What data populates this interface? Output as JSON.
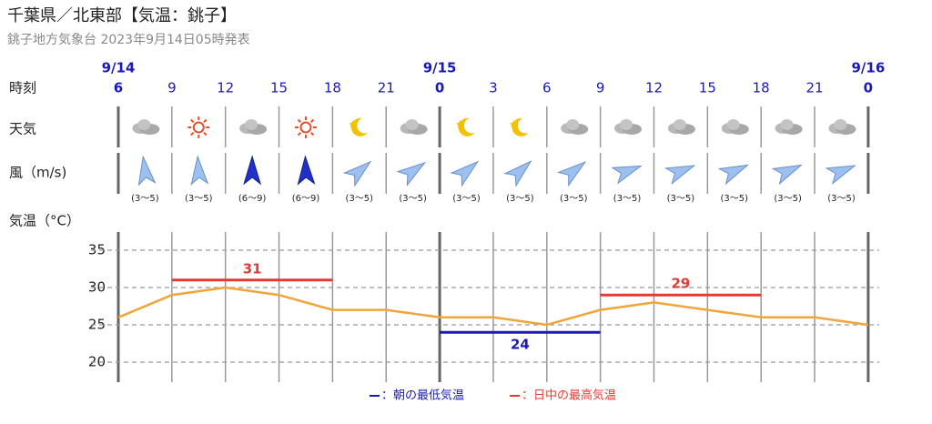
{
  "header": {
    "title": "千葉県／北東部【気温：銚子】",
    "subtitle": "銚子地方気象台 2023年9月14日05時発表"
  },
  "row_labels": {
    "time": "時刻",
    "weather": "天気",
    "wind": "風（m/s)",
    "temp": "気温（°C）"
  },
  "wind": {
    "ranges": [
      "(3～5)",
      "(3～5)",
      "(6～9)",
      "(6～9)",
      "(3～5)",
      "(3～5)",
      "(3～5)",
      "(3～5)",
      "(3～5)",
      "(3～5)",
      "(3～5)",
      "(3～5)",
      "(3～5)",
      "(3～5)"
    ]
  },
  "chart_data": {
    "type": "line",
    "dates": [
      "9/14",
      null,
      null,
      null,
      null,
      null,
      "9/15",
      null,
      null,
      null,
      null,
      null,
      null,
      null,
      "9/16"
    ],
    "categories": [
      "6",
      "9",
      "12",
      "15",
      "18",
      "21",
      "0",
      "3",
      "6",
      "9",
      "12",
      "15",
      "18",
      "21",
      "0"
    ],
    "series": [
      {
        "name": "気温",
        "color": "#f0a53a",
        "values": [
          26,
          29,
          30,
          29,
          27,
          27,
          26,
          26,
          25,
          27,
          28,
          27,
          26,
          26,
          25
        ]
      },
      {
        "name": "：日中の最高気温",
        "color": "#e03c31",
        "values": [
          null,
          31,
          31,
          31,
          31,
          null,
          null,
          null,
          null,
          29,
          29,
          29,
          29,
          null,
          null
        ]
      },
      {
        "name": "：朝の最低気温",
        "color": "#1a1ab8",
        "values": [
          null,
          null,
          null,
          null,
          null,
          null,
          24,
          24,
          24,
          24,
          null,
          null,
          null,
          null,
          null
        ]
      }
    ],
    "ylim": [
      17.5,
      37.5
    ],
    "yticks": [
      20,
      25,
      30,
      35
    ],
    "grid": true
  }
}
